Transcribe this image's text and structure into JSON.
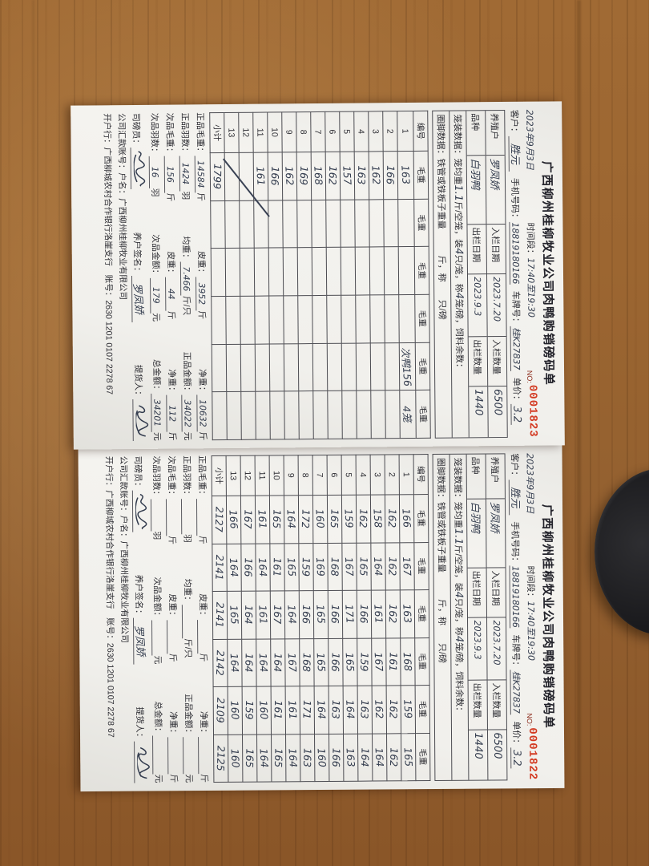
{
  "scene": {
    "background": "wooden table",
    "wood_color": "#9c6631",
    "plate_color": "#1d1d20",
    "paper_color": "#f1f0ec",
    "ink_color": "#333c4e",
    "serial_color": "#d33a22"
  },
  "labels": {
    "title": "广西柳州桂柳牧业公司肉鸭购销磅码单",
    "no_label": "NO:",
    "time_label": "时间段：",
    "customer": "客户：",
    "phone": "手机号码：",
    "plate": "车牌号：",
    "price": "单价：",
    "farmer": "养殖户",
    "in_date": "入栏日期",
    "in_qty": "入栏数量",
    "breed": "品种",
    "out_date": "出栏日期",
    "out_qty": "出栏数量",
    "cage1": "笼装数据：笼均重",
    "cage2": "斤/空笼，装",
    "cage3": "只/笼，称",
    "cage4": "笼/磅，饲料余数：",
    "pen_line": "圈脚数据：铁管或铁板子重量　　　斤，称　　只/磅",
    "col_no": "编号",
    "col_wt": "毛重",
    "subtotal": "小计",
    "zp_gross": "正品毛重：",
    "tare": "皮重：",
    "net": "净重：",
    "zp_count": "正品羽数：",
    "avg": "均重：",
    "zp_amount": "正品金额：",
    "cp_gross": "次品毛重：",
    "cp_count": "次品羽数：",
    "cp_amount": "次品金额：",
    "total_amount": "总金额：",
    "weigher": "司磅员：",
    "farmer_sign": "养户签名：",
    "picker": "提货人：",
    "unit_jin": "斤",
    "unit_yu": "羽",
    "unit_jin_per": "斤/只",
    "unit_yuan": "元",
    "bank1": "公司汇款账号：户名：广西柳州桂柳牧业有限公司",
    "bank2": "开户行：广西柳城农村合作银行洛崖支行　账号：2630 1201 0107 2278 67"
  },
  "docs": {
    "top": {
      "serial": "0001823",
      "date": "2023年9月3日",
      "time_range": "17:40至19:30",
      "customer": "胜元",
      "phone": "18819180166",
      "plate": "桂K27837",
      "price": "3.2",
      "farmer": "罗凤娇",
      "breed": "白羽鸭",
      "in_date": "2023.7.20",
      "in_qty": "6500",
      "out_date": "2023.9.3",
      "out_qty": "1440",
      "cage_avg": "1.1",
      "per_cage": "4",
      "cage_per_weigh": "4",
      "rows": [
        {
          "no": "1",
          "vals": [
            "163",
            "",
            "",
            "",
            "次鸭156",
            "4笼"
          ]
        },
        {
          "no": "2",
          "vals": [
            "166",
            "",
            "",
            "",
            "",
            ""
          ]
        },
        {
          "no": "3",
          "vals": [
            "162",
            "",
            "",
            "",
            "",
            ""
          ]
        },
        {
          "no": "4",
          "vals": [
            "163",
            "",
            "",
            "",
            "",
            ""
          ]
        },
        {
          "no": "5",
          "vals": [
            "157",
            "",
            "",
            "",
            "",
            ""
          ]
        },
        {
          "no": "6",
          "vals": [
            "162",
            "",
            "",
            "",
            "",
            ""
          ]
        },
        {
          "no": "7",
          "vals": [
            "168",
            "",
            "",
            "",
            "",
            ""
          ]
        },
        {
          "no": "8",
          "vals": [
            "169",
            "",
            "",
            "",
            "",
            ""
          ]
        },
        {
          "no": "9",
          "vals": [
            "162",
            "",
            "",
            "",
            "",
            ""
          ]
        },
        {
          "no": "10",
          "vals": [
            "166",
            "",
            "",
            "",
            "",
            ""
          ]
        },
        {
          "no": "11",
          "vals": [
            "161",
            "",
            "",
            "",
            "",
            ""
          ]
        },
        {
          "no": "12",
          "vals": [
            "",
            "",
            "",
            "",
            "",
            ""
          ]
        },
        {
          "no": "13",
          "vals": [
            "",
            "",
            "",
            "",
            "",
            ""
          ]
        },
        {
          "no": "小计",
          "vals": [
            "1799",
            "",
            "",
            "",
            "",
            ""
          ]
        }
      ],
      "footer": {
        "zp_gross": "14584",
        "tare": "3952",
        "net": "10632",
        "zp_count": "1424",
        "avg": "7.466",
        "zp_amount": "34022",
        "cp_gross": "156",
        "cp_tare": "44",
        "cp_net": "112",
        "cp_count": "16",
        "cp_amount": "179",
        "total": "34201",
        "farmer_sign": "罗凤娇"
      }
    },
    "bottom": {
      "serial": "0001822",
      "date": "2023年9月3日",
      "time_range": "17:40至19:30",
      "customer": "胜元",
      "phone": "18819180166",
      "plate": "桂K27837",
      "price": "3.2",
      "farmer": "罗凤娇",
      "breed": "白羽鸭",
      "in_date": "2023.7.20",
      "in_qty": "6500",
      "out_date": "2023.9.3",
      "out_qty": "1440",
      "cage_avg": "1.1",
      "per_cage": "4",
      "cage_per_weigh": "4",
      "rows": [
        {
          "no": "1",
          "vals": [
            "166",
            "167",
            "163",
            "168",
            "159",
            "165"
          ]
        },
        {
          "no": "2",
          "vals": [
            "162",
            "162",
            "162",
            "161",
            "162",
            "162"
          ]
        },
        {
          "no": "3",
          "vals": [
            "158",
            "164",
            "161",
            "167",
            "162",
            "164"
          ]
        },
        {
          "no": "4",
          "vals": [
            "162",
            "165",
            "166",
            "159",
            "163",
            "164"
          ]
        },
        {
          "no": "5",
          "vals": [
            "159",
            "167",
            "171",
            "165",
            "164",
            "163"
          ]
        },
        {
          "no": "6",
          "vals": [
            "165",
            "168",
            "166",
            "166",
            "163",
            "166"
          ]
        },
        {
          "no": "7",
          "vals": [
            "160",
            "169",
            "165",
            "165",
            "164",
            "160"
          ]
        },
        {
          "no": "8",
          "vals": [
            "172",
            "159",
            "166",
            "168",
            "171",
            "163"
          ]
        },
        {
          "no": "9",
          "vals": [
            "164",
            "165",
            "164",
            "167",
            "161",
            "164"
          ]
        },
        {
          "no": "10",
          "vals": [
            "165",
            "161",
            "167",
            "164",
            "161",
            "165"
          ]
        },
        {
          "no": "11",
          "vals": [
            "161",
            "164",
            "161",
            "164",
            "160",
            "164"
          ]
        },
        {
          "no": "12",
          "vals": [
            "167",
            "166",
            "164",
            "164",
            "159",
            "165"
          ]
        },
        {
          "no": "13",
          "vals": [
            "166",
            "164",
            "165",
            "164",
            "160",
            "160"
          ]
        },
        {
          "no": "小计",
          "vals": [
            "2127",
            "2141",
            "2141",
            "2142",
            "2109",
            "2125"
          ]
        }
      ],
      "footer": {
        "zp_gross": "",
        "tare": "",
        "net": "",
        "zp_count": "",
        "avg": "",
        "zp_amount": "",
        "cp_gross": "",
        "cp_tare": "",
        "cp_net": "",
        "cp_count": "",
        "cp_amount": "",
        "total": "",
        "farmer_sign": "罗凤娇"
      }
    }
  }
}
